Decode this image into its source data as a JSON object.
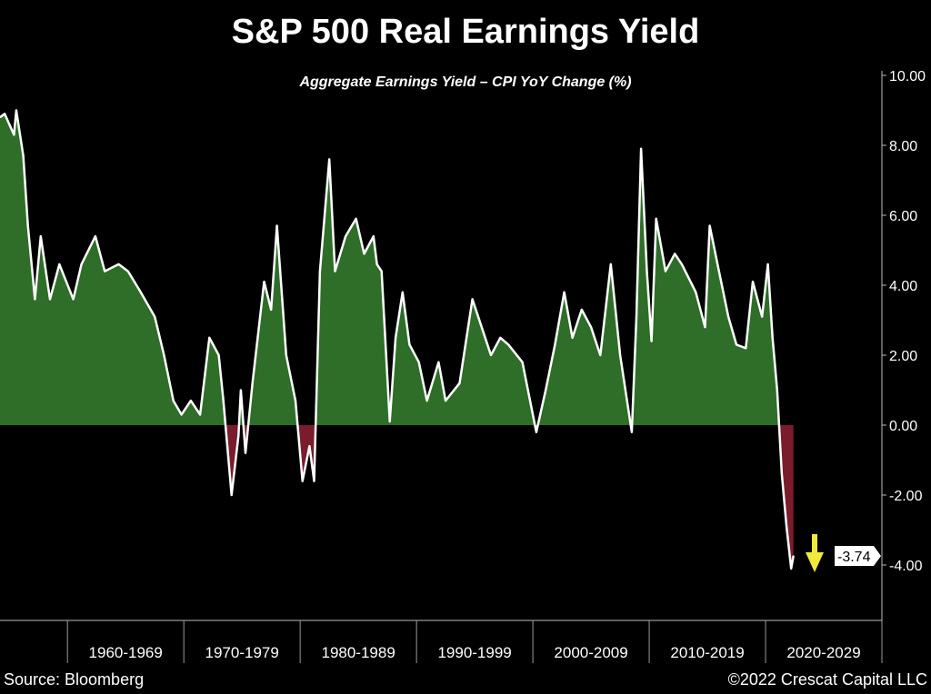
{
  "chart_data": {
    "type": "area",
    "title": "S&P 500 Real Earnings Yield",
    "subtitle": "Aggregate Earnings Yield – CPI YoY Change (%)",
    "xlabel": "",
    "ylabel": "",
    "ylim": [
      -5,
      10
    ],
    "xlim": [
      1954.2,
      2030
    ],
    "y_ticks": [
      "10.00",
      "8.00",
      "6.00",
      "4.00",
      "2.00",
      "0.00",
      "-2.00",
      "-4.00"
    ],
    "y_tick_values": [
      10,
      8,
      6,
      4,
      2,
      0,
      -2,
      -4
    ],
    "x_categories": [
      "1960-1969",
      "1970-1979",
      "1980-1989",
      "1990-1999",
      "2000-2009",
      "2010-2019",
      "2020-2029"
    ],
    "last_value_label": "-3.74",
    "annotation": "down-arrow",
    "colors": {
      "positive": "#2e6e28",
      "negative": "#7a1c2c",
      "line": "#ffffff",
      "arrow": "#f2e93a"
    },
    "series": [
      {
        "name": "Real Earnings Yield",
        "points": [
          [
            1954.2,
            8.8
          ],
          [
            1954.6,
            8.9
          ],
          [
            1955.4,
            8.3
          ],
          [
            1955.6,
            9.0
          ],
          [
            1956.2,
            7.7
          ],
          [
            1956.6,
            5.7
          ],
          [
            1957.2,
            3.6
          ],
          [
            1957.7,
            5.4
          ],
          [
            1958.5,
            3.6
          ],
          [
            1959.3,
            4.6
          ],
          [
            1960.5,
            3.6
          ],
          [
            1961.2,
            4.6
          ],
          [
            1962.4,
            5.4
          ],
          [
            1963.2,
            4.4
          ],
          [
            1964.4,
            4.6
          ],
          [
            1965.2,
            4.4
          ],
          [
            1966.3,
            3.8
          ],
          [
            1967.5,
            3.1
          ],
          [
            1968.3,
            2.0
          ],
          [
            1969.1,
            0.7
          ],
          [
            1969.8,
            0.3
          ],
          [
            1970.6,
            0.7
          ],
          [
            1971.4,
            0.3
          ],
          [
            1972.2,
            2.5
          ],
          [
            1973.0,
            2.0
          ],
          [
            1973.4,
            0.7
          ],
          [
            1974.1,
            -2.0
          ],
          [
            1974.7,
            -0.3
          ],
          [
            1974.9,
            1.0
          ],
          [
            1975.3,
            -0.8
          ],
          [
            1975.9,
            1.2
          ],
          [
            1976.9,
            4.1
          ],
          [
            1977.5,
            3.3
          ],
          [
            1978.0,
            5.7
          ],
          [
            1978.8,
            2.0
          ],
          [
            1979.6,
            0.7
          ],
          [
            1980.2,
            -1.6
          ],
          [
            1980.8,
            -0.6
          ],
          [
            1981.2,
            -1.6
          ],
          [
            1981.7,
            4.4
          ],
          [
            1982.5,
            7.6
          ],
          [
            1983.0,
            4.4
          ],
          [
            1983.9,
            5.4
          ],
          [
            1984.8,
            5.9
          ],
          [
            1985.5,
            4.9
          ],
          [
            1986.3,
            5.4
          ],
          [
            1986.6,
            4.6
          ],
          [
            1987.0,
            4.4
          ],
          [
            1987.7,
            0.1
          ],
          [
            1988.2,
            2.5
          ],
          [
            1988.8,
            3.8
          ],
          [
            1989.4,
            2.3
          ],
          [
            1990.2,
            1.8
          ],
          [
            1990.9,
            0.7
          ],
          [
            1991.9,
            1.8
          ],
          [
            1992.5,
            0.7
          ],
          [
            1993.7,
            1.2
          ],
          [
            1994.8,
            3.6
          ],
          [
            1995.6,
            2.8
          ],
          [
            1996.4,
            2.0
          ],
          [
            1997.2,
            2.5
          ],
          [
            1997.9,
            2.3
          ],
          [
            1999.1,
            1.8
          ],
          [
            2000.3,
            -0.2
          ],
          [
            2001.1,
            1.0
          ],
          [
            2001.9,
            2.3
          ],
          [
            2002.7,
            3.8
          ],
          [
            2003.4,
            2.5
          ],
          [
            2004.2,
            3.3
          ],
          [
            2005.0,
            2.8
          ],
          [
            2005.8,
            2.0
          ],
          [
            2006.7,
            4.6
          ],
          [
            2007.5,
            2.0
          ],
          [
            2008.5,
            -0.2
          ],
          [
            2008.9,
            3.1
          ],
          [
            2009.3,
            7.9
          ],
          [
            2009.8,
            4.4
          ],
          [
            2010.2,
            2.4
          ],
          [
            2010.6,
            5.9
          ],
          [
            2011.4,
            4.4
          ],
          [
            2012.2,
            4.9
          ],
          [
            2012.8,
            4.6
          ],
          [
            2014.0,
            3.8
          ],
          [
            2014.8,
            2.8
          ],
          [
            2015.2,
            5.7
          ],
          [
            2016.0,
            4.4
          ],
          [
            2016.8,
            3.1
          ],
          [
            2017.5,
            2.3
          ],
          [
            2018.3,
            2.2
          ],
          [
            2018.9,
            4.1
          ],
          [
            2019.7,
            3.1
          ],
          [
            2020.2,
            4.6
          ],
          [
            2020.6,
            2.5
          ],
          [
            2021.0,
            1.0
          ],
          [
            2021.4,
            -1.4
          ],
          [
            2021.8,
            -2.9
          ],
          [
            2022.2,
            -4.1
          ],
          [
            2022.4,
            -3.74
          ]
        ]
      }
    ]
  },
  "source": "Source: Bloomberg",
  "copyright": "©2022 Crescat Capital LLC"
}
